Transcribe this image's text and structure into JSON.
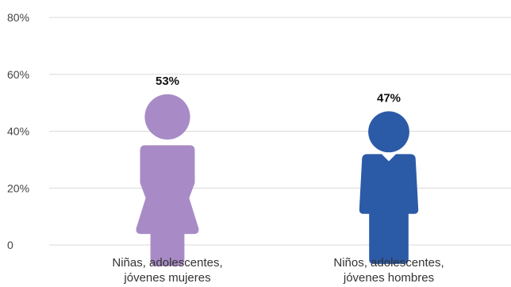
{
  "chart_data": {
    "type": "bar",
    "categories": [
      "Niñas, adolescentes, jóvenes mujeres",
      "Niños, adolescentes, jóvenes hombres"
    ],
    "category_lines": [
      [
        "Niñas, adolescentes,",
        "jóvenes mujeres"
      ],
      [
        "Niños, adolescentes,",
        "jóvenes hombres"
      ]
    ],
    "values": [
      53,
      47
    ],
    "data_labels": [
      "53%",
      "47%"
    ],
    "yticks": [
      0,
      20,
      40,
      60,
      80
    ],
    "ytick_labels": [
      "0",
      "20%",
      "40%",
      "60%",
      "80%"
    ],
    "ylim": [
      0,
      80
    ],
    "grid": true,
    "mark": "pictogram",
    "colors": [
      "#a88bc6",
      "#2b5aa7"
    ],
    "icons": [
      "female-figure-icon",
      "male-figure-icon"
    ],
    "title": "",
    "xlabel": "",
    "ylabel": ""
  }
}
